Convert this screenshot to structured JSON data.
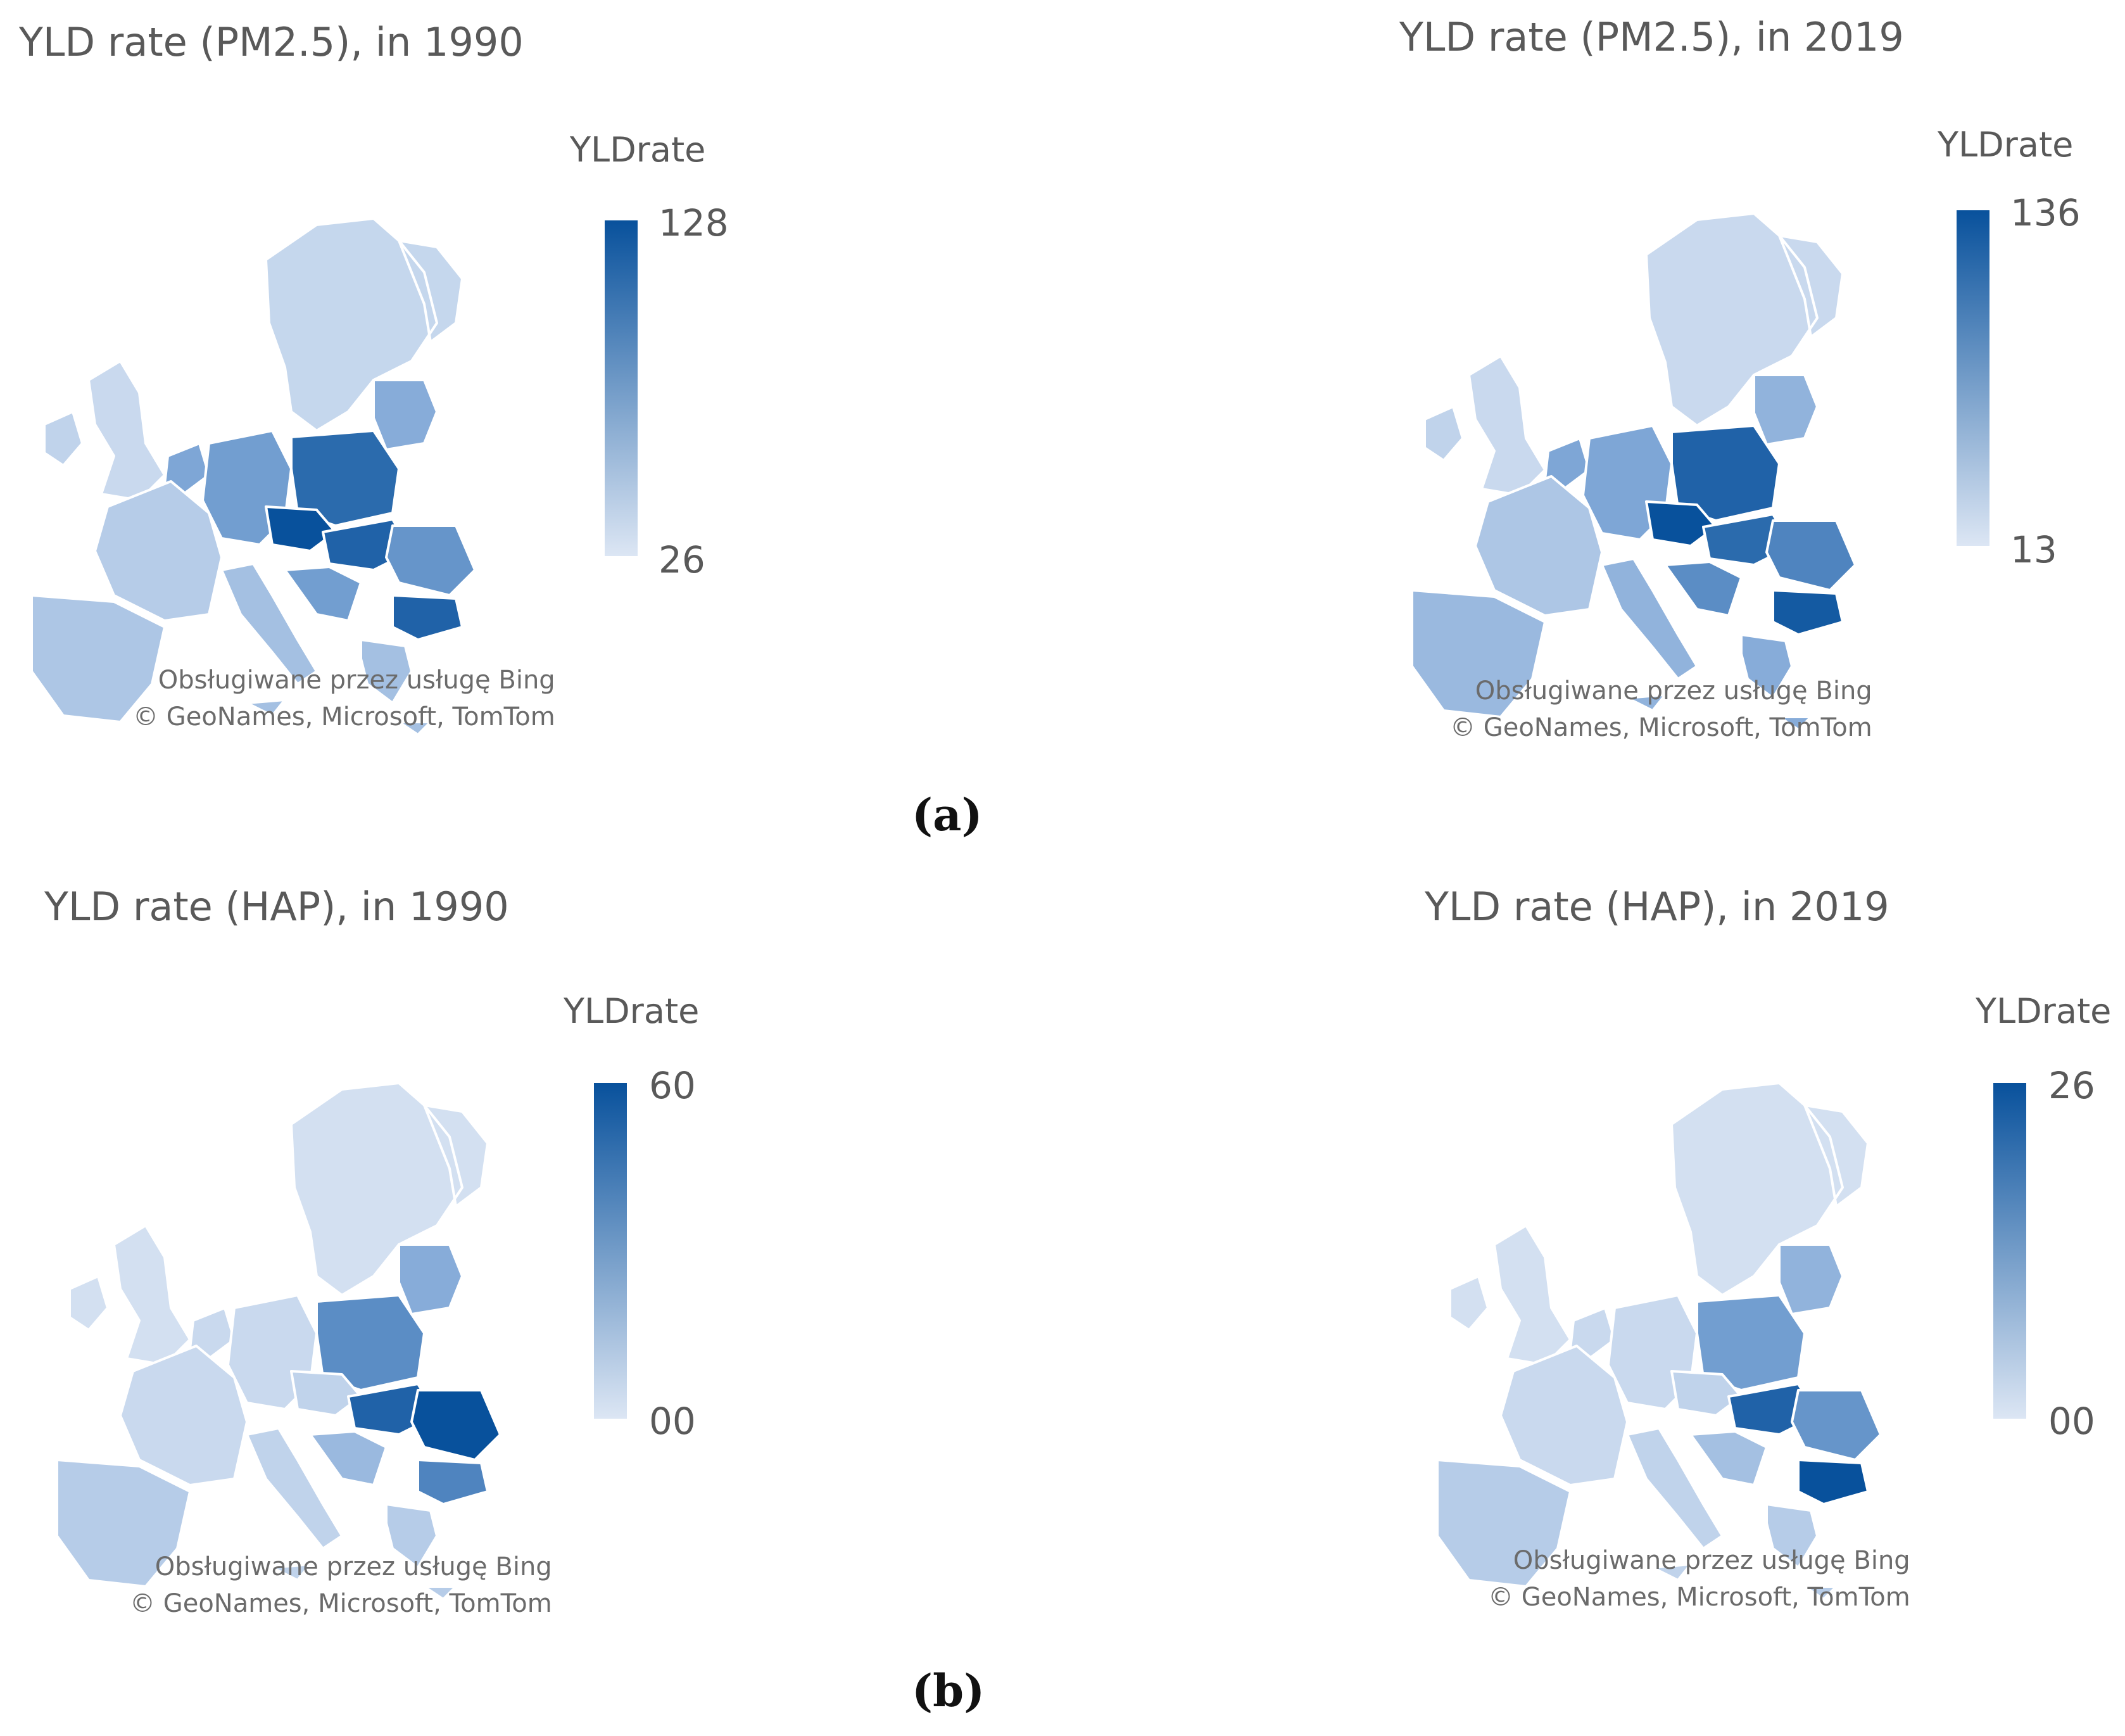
{
  "colors": {
    "light": "#dce6f4",
    "mid": "#7ea6d6",
    "dark": "#08519c",
    "border": "#ffffff"
  },
  "legend_title": "YLDrate",
  "attribution": {
    "line1": "Obsługiwane przez usługę Bing",
    "line2": "© GeoNames, Microsoft, TomTom"
  },
  "sublabels": {
    "a": "(a)",
    "b": "(b)"
  },
  "maps": [
    {
      "title": "YLD rate (PM2.5), in 1990",
      "legend": {
        "max": "128",
        "min": "26"
      },
      "levels": {
        "Nordic": 0.12,
        "Baltic": 0.45,
        "Ireland": 0.15,
        "UK": 0.1,
        "France": 0.2,
        "Iberia": 0.25,
        "Germany": 0.55,
        "Poland": 0.85,
        "Czechia": 1.0,
        "Hungary": 0.9,
        "Romania": 0.6,
        "Bulgaria": 0.9,
        "Balkans": 0.55,
        "Italy": 0.3,
        "Greece": 0.3,
        "Benelux": 0.5
      }
    },
    {
      "title": "YLD rate (PM2.5), in 2019",
      "legend": {
        "max": "136",
        "min": "13"
      },
      "levels": {
        "Nordic": 0.1,
        "Baltic": 0.4,
        "Ireland": 0.15,
        "UK": 0.1,
        "France": 0.25,
        "Iberia": 0.35,
        "Germany": 0.5,
        "Poland": 0.9,
        "Czechia": 1.0,
        "Hungary": 0.85,
        "Romania": 0.7,
        "Bulgaria": 0.95,
        "Balkans": 0.65,
        "Italy": 0.4,
        "Greece": 0.45,
        "Benelux": 0.5
      }
    },
    {
      "title": "YLD rate (HAP), in 1990",
      "legend": {
        "max": "60",
        "min": "00"
      },
      "levels": {
        "Nordic": 0.05,
        "Baltic": 0.45,
        "Ireland": 0.05,
        "UK": 0.05,
        "France": 0.1,
        "Iberia": 0.2,
        "Germany": 0.1,
        "Poland": 0.65,
        "Czechia": 0.15,
        "Hungary": 0.9,
        "Romania": 1.0,
        "Bulgaria": 0.7,
        "Balkans": 0.35,
        "Italy": 0.15,
        "Greece": 0.2,
        "Benelux": 0.1
      }
    },
    {
      "title": "YLD rate (HAP), in 2019",
      "legend": {
        "max": "26",
        "min": "00"
      },
      "levels": {
        "Nordic": 0.05,
        "Baltic": 0.4,
        "Ireland": 0.05,
        "UK": 0.05,
        "France": 0.1,
        "Iberia": 0.2,
        "Germany": 0.1,
        "Poland": 0.55,
        "Czechia": 0.15,
        "Hungary": 0.9,
        "Romania": 0.6,
        "Bulgaria": 1.0,
        "Balkans": 0.3,
        "Italy": 0.15,
        "Greece": 0.2,
        "Benelux": 0.1
      }
    }
  ]
}
